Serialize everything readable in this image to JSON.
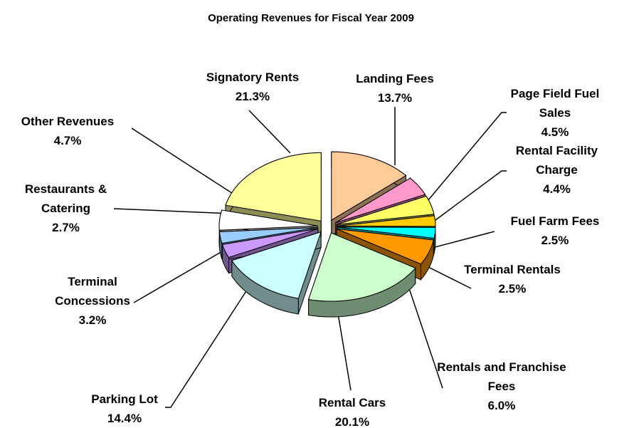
{
  "chart_data": {
    "type": "pie3d",
    "title": "Operating Revenues for Fiscal Year 2009",
    "categories": [
      "Landing Fees",
      "Page Field Fuel Sales",
      "Rental Facility Charge",
      "Fuel Farm Fees",
      "Terminal Rentals",
      "Rentals and Franchise Fees",
      "Rental Cars",
      "Parking Lot",
      "Terminal Concessions",
      "Restaurants & Catering",
      "Other Revenues",
      "Signatory Rents"
    ],
    "values": [
      13.7,
      4.5,
      4.4,
      2.5,
      2.5,
      6.0,
      20.1,
      14.4,
      3.2,
      2.7,
      4.7,
      21.3
    ],
    "value_labels": [
      "13.7%",
      "4.5%",
      "4.4%",
      "2.5%",
      "2.5%",
      "6.0%",
      "20.1%",
      "14.4%",
      "3.2%",
      "2.7%",
      "4.7%",
      "21.3%"
    ],
    "colors": [
      "#FFCC99",
      "#FF99CC",
      "#FFFF66",
      "#FFCC00",
      "#00FFFF",
      "#FF9900",
      "#CCFFCC",
      "#CCFFFF",
      "#CC99FF",
      "#99CCFF",
      "#FFFFFF",
      "#FFFF99"
    ]
  }
}
